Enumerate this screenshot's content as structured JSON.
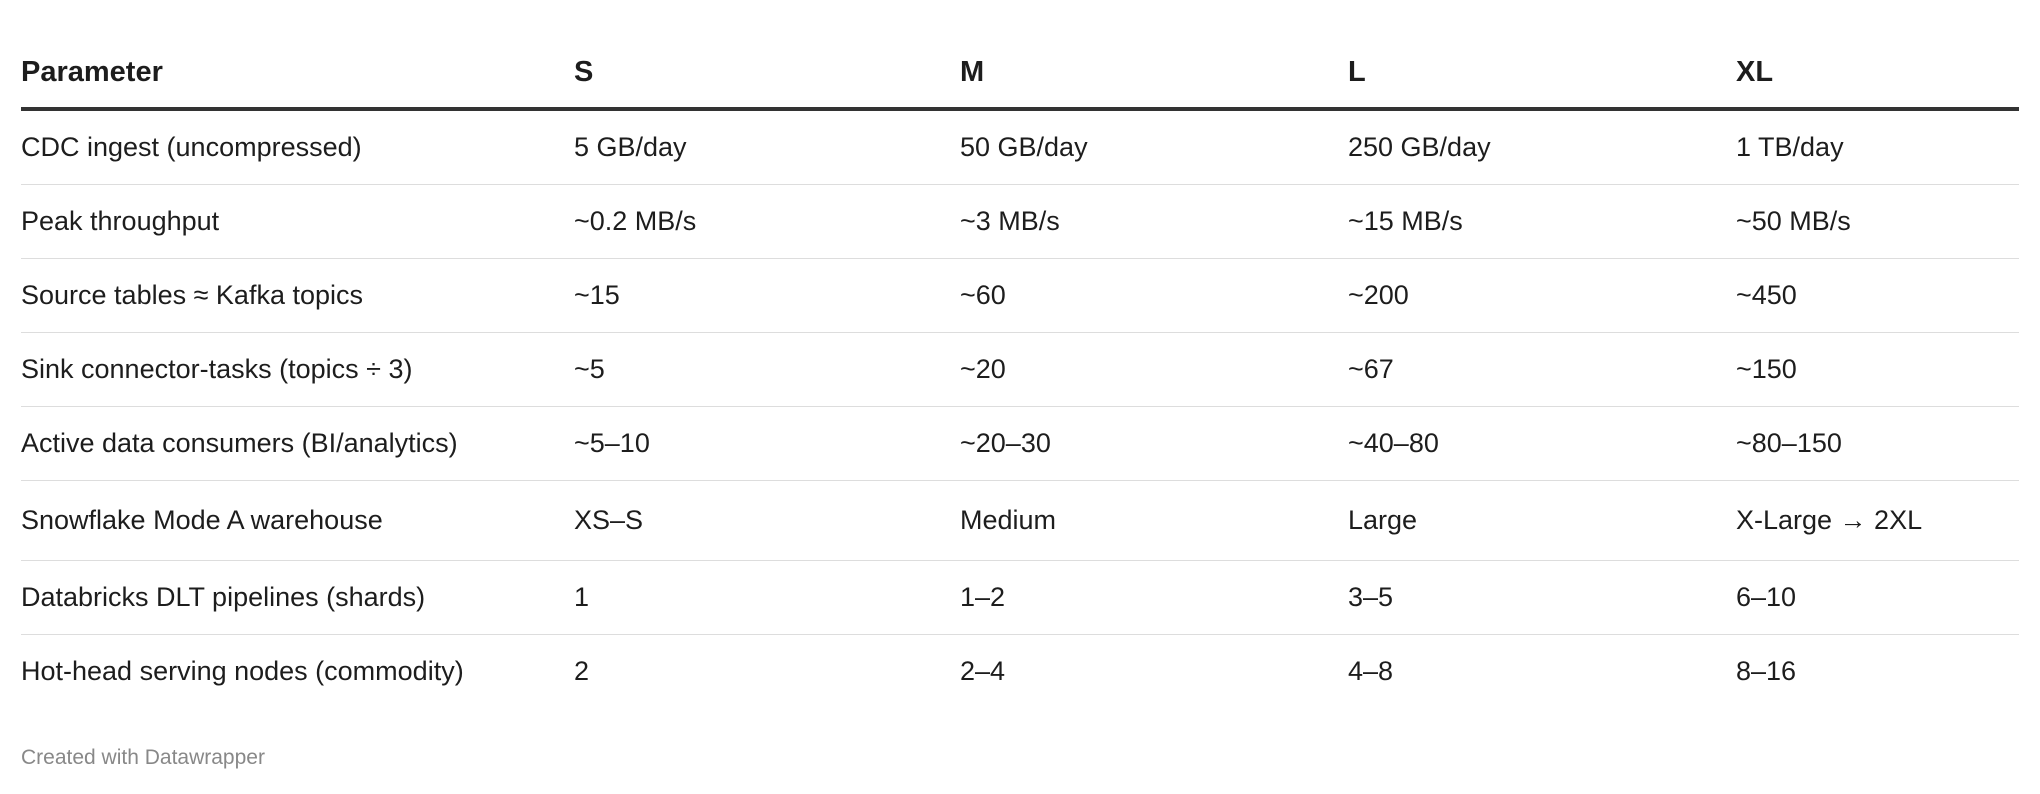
{
  "table": {
    "header": [
      "Parameter",
      "S",
      "M",
      "L",
      "XL"
    ],
    "rows": [
      [
        "CDC ingest (uncompressed)",
        "5 GB/day",
        "50 GB/day",
        "250 GB/day",
        "1 TB/day"
      ],
      [
        "Peak throughput",
        "~0.2 MB/s",
        "~3 MB/s",
        "~15 MB/s",
        "~50 MB/s"
      ],
      [
        "Source tables ≈ Kafka topics",
        "~15",
        "~60",
        "~200",
        "~450"
      ],
      [
        "Sink connector-tasks (topics ÷ 3)",
        "~5",
        "~20",
        "~67",
        "~150"
      ],
      [
        "Active data consumers (BI/analytics)",
        "~5–10",
        "~20–30",
        "~40–80",
        "~80–150"
      ],
      [
        "Snowflake Mode A warehouse",
        "XS–S",
        "Medium",
        "Large",
        "X-Large → 2XL"
      ],
      [
        "Databricks DLT pipelines (shards)",
        "1",
        "1–2",
        "3–5",
        "6–10"
      ],
      [
        "Hot-head serving nodes (commodity)",
        "2",
        "2–4",
        "4–8",
        "8–16"
      ]
    ]
  },
  "footer": "Created with Datawrapper"
}
